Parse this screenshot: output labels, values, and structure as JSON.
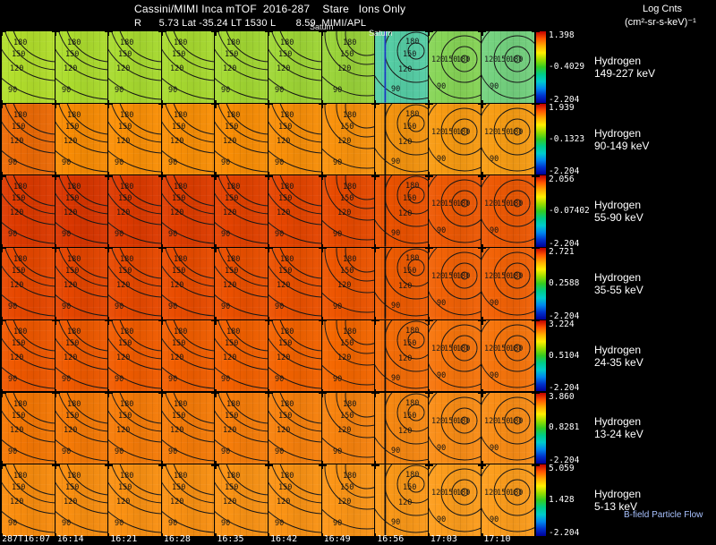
{
  "header": {
    "title": "Cassini/MIMI Inca mTOF  2016-287    Stare   Ions Only",
    "info_line": "R      5.73 Lat -35.24 LT 1530 L       8.59  MIMI/APL",
    "legend_title": "Log Cnts",
    "legend_units": "(cm²-sr-s-keV)⁻¹"
  },
  "annotations": {
    "saturn_1": "Saturn",
    "saturn_2": "Saturn",
    "bfield": "B-field Particle Flow"
  },
  "chart_data": {
    "type": "heatmap",
    "x_axis_time_labels": [
      "287T16:07",
      "16:14",
      "16:21",
      "16:28",
      "16:35",
      "16:42",
      "16:49",
      "16:56",
      "17:03",
      "17:10"
    ],
    "contour_labels": [
      "180",
      "150",
      "120",
      "90"
    ],
    "colorbar_gradient": [
      "#c00000",
      "#ff5500",
      "#ffaa00",
      "#ffee00",
      "#99dd00",
      "#33cc22",
      "#00cc88",
      "#00cccc",
      "#0088ee",
      "#0033cc",
      "#000099"
    ],
    "rows": [
      {
        "species": "Hydrogen",
        "energy": "149-227 keV",
        "colorbar": {
          "max": "1.398",
          "mid": "-0.4029",
          "min": "-2.204"
        },
        "panel_colors": [
          "#b2df2c",
          "#acdd2e",
          "#a8db30",
          "#a8db30",
          "#a3d933",
          "#9fd736",
          "#9ad43a",
          "#56cfa6",
          "#87d557",
          "#74d27f"
        ]
      },
      {
        "species": "Hydrogen",
        "energy": "90-149 keV",
        "colorbar": {
          "max": "1.939",
          "mid": "-0.1323",
          "min": "-2.204"
        },
        "panel_colors": [
          "#ee6b06",
          "#f98c04",
          "#fb9006",
          "#fb9006",
          "#fa8e05",
          "#f98f08",
          "#f9920c",
          "#f6950f",
          "#f89b12",
          "#f89d14"
        ]
      },
      {
        "species": "Hydrogen",
        "energy": "55-90 keV",
        "colorbar": {
          "max": "2.056",
          "mid": "-0.07402",
          "min": "-2.204"
        },
        "panel_colors": [
          "#de3a00",
          "#da3600",
          "#de3a00",
          "#e03d00",
          "#e44200",
          "#e64500",
          "#e84a00",
          "#ec5200",
          "#ee5904",
          "#ee5904"
        ]
      },
      {
        "species": "Hydrogen",
        "energy": "35-55 keV",
        "colorbar": {
          "max": "2.721",
          "mid": "0.2588",
          "min": "-2.204"
        },
        "panel_colors": [
          "#e84800",
          "#e64600",
          "#e84900",
          "#ea4c00",
          "#ec5000",
          "#ec5100",
          "#ee5500",
          "#f05c02",
          "#f26206",
          "#f26206"
        ]
      },
      {
        "species": "Hydrogen",
        "energy": "24-35 keV",
        "colorbar": {
          "max": "3.224",
          "mid": "0.5104",
          "min": "-2.204"
        },
        "panel_colors": [
          "#f05800",
          "#f05a00",
          "#f25c00",
          "#f25e00",
          "#f46100",
          "#f46300",
          "#f56700",
          "#f66e08",
          "#f7750c",
          "#f7750c"
        ]
      },
      {
        "species": "Hydrogen",
        "energy": "13-24 keV",
        "colorbar": {
          "max": "3.860",
          "mid": "0.8281",
          "min": "-2.204"
        },
        "panel_colors": [
          "#f67804",
          "#f67a06",
          "#f77c08",
          "#f77c08",
          "#f87e0a",
          "#f8810c",
          "#f8830e",
          "#f98912",
          "#fa8d16",
          "#fa8d16"
        ]
      },
      {
        "species": "Hydrogen",
        "energy": "5-13 keV",
        "colorbar": {
          "max": "5.059",
          "mid": "1.428",
          "min": "-2.204"
        },
        "panel_colors": [
          "#fa8d0e",
          "#fa8f10",
          "#fb9112",
          "#fb9112",
          "#fb9314",
          "#fb9314",
          "#fc9516",
          "#fc9918",
          "#fd9d1c",
          "#fd9d1c"
        ]
      }
    ]
  }
}
